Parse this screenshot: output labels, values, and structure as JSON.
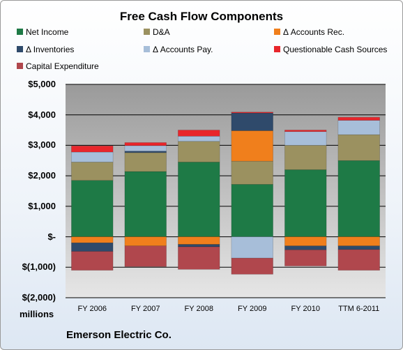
{
  "chart_data": {
    "type": "bar",
    "stacked": true,
    "title": "Free Cash Flow Components",
    "categories": [
      "FY 2006",
      "FY 2007",
      "FY 2008",
      "FY 2009",
      "FY 2010",
      "TTM 6-2011"
    ],
    "ylim": [
      -2000,
      5000
    ],
    "yticks": [
      5000,
      4000,
      3000,
      2000,
      1000,
      0,
      -1000,
      -2000
    ],
    "ytick_labels": [
      "$5,000",
      "$4,000",
      "$3,000",
      "$2,000",
      "$1,000",
      "$-",
      "$(1,000)",
      "$(2,000)"
    ],
    "units_label": "millions",
    "grid": true,
    "legend_position": "top",
    "series": [
      {
        "name": "Net Income",
        "color": "#1e7a46",
        "values": [
          1850,
          2140,
          2450,
          1720,
          2200,
          2500
        ]
      },
      {
        "name": "D&A",
        "color": "#9b9160",
        "values": [
          600,
          620,
          680,
          760,
          800,
          850
        ]
      },
      {
        "name": "Δ Accounts Rec.",
        "color": "#f07f1c",
        "values": [
          -200,
          -300,
          -250,
          1000,
          -300,
          -300
        ]
      },
      {
        "name": "Δ Inventories",
        "color": "#2f4a6b",
        "values": [
          -280,
          50,
          -80,
          580,
          -130,
          -120
        ]
      },
      {
        "name": "Δ Accounts Pay.",
        "color": "#a7bed9",
        "values": [
          330,
          180,
          170,
          -700,
          450,
          470
        ]
      },
      {
        "name": "Questionable Cash Sources",
        "color": "#e8262c",
        "values": [
          200,
          100,
          200,
          30,
          50,
          100
        ]
      },
      {
        "name": "Capital Expenditure",
        "color": "#b0474d",
        "values": [
          -620,
          -680,
          -740,
          -530,
          -530,
          -680
        ]
      }
    ],
    "footer": "Emerson Electric Co."
  }
}
